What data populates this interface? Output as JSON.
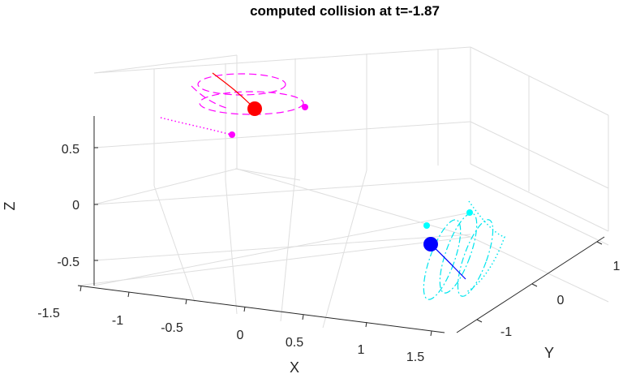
{
  "chart_data": {
    "type": "line3d",
    "title": "computed collision at t=-1.87",
    "xlabel": "X",
    "ylabel": "Y",
    "zlabel": "Z",
    "xlim": [
      -1.5,
      1.5
    ],
    "ylim": [
      -1.5,
      1.5
    ],
    "zlim": [
      -0.75,
      0.75
    ],
    "grid": true,
    "xticks": [
      "-1.5",
      "-1",
      "-0.5",
      "0",
      "0.5",
      "1",
      "1.5"
    ],
    "yticks": [
      "-1",
      "0",
      "1"
    ],
    "zticks": [
      "-0.5",
      "0",
      "0.5"
    ],
    "colors": {
      "red": "#ff0000",
      "magenta": "#ff00ff",
      "blue": "#0000ff",
      "cyan": "#00ffff",
      "axis": "#262626",
      "grid": "#dedede"
    },
    "objects": [
      {
        "id": "red-body",
        "marker": "large-dot",
        "color": "red",
        "position": [
          -0.2,
          1.3,
          0.75
        ]
      },
      {
        "id": "blue-body",
        "marker": "large-dot",
        "color": "blue",
        "position": [
          0.5,
          -1.3,
          -0.75
        ]
      },
      {
        "id": "magenta-point-1",
        "marker": "small-dot",
        "color": "magenta",
        "position": [
          0.2,
          1.5,
          0.8
        ]
      },
      {
        "id": "magenta-point-2",
        "marker": "small-dot",
        "color": "magenta",
        "position": [
          -0.7,
          1.1,
          0.6
        ]
      },
      {
        "id": "cyan-point-1",
        "marker": "small-dot",
        "color": "cyan",
        "position": [
          0.3,
          -0.9,
          -0.6
        ]
      },
      {
        "id": "cyan-point-2",
        "marker": "small-dot",
        "color": "cyan",
        "position": [
          1.0,
          -0.7,
          -0.55
        ]
      }
    ],
    "series": [
      {
        "id": "red-track",
        "color": "red",
        "style": "solid"
      },
      {
        "id": "magenta-helix",
        "color": "magenta",
        "style": "dashed"
      },
      {
        "id": "magenta-dotted-track",
        "color": "magenta",
        "style": "dotted"
      },
      {
        "id": "blue-track",
        "color": "blue",
        "style": "solid"
      },
      {
        "id": "cyan-helix",
        "color": "cyan",
        "style": "dash-dot"
      },
      {
        "id": "cyan-dotted-track",
        "color": "cyan",
        "style": "dotted"
      }
    ]
  }
}
